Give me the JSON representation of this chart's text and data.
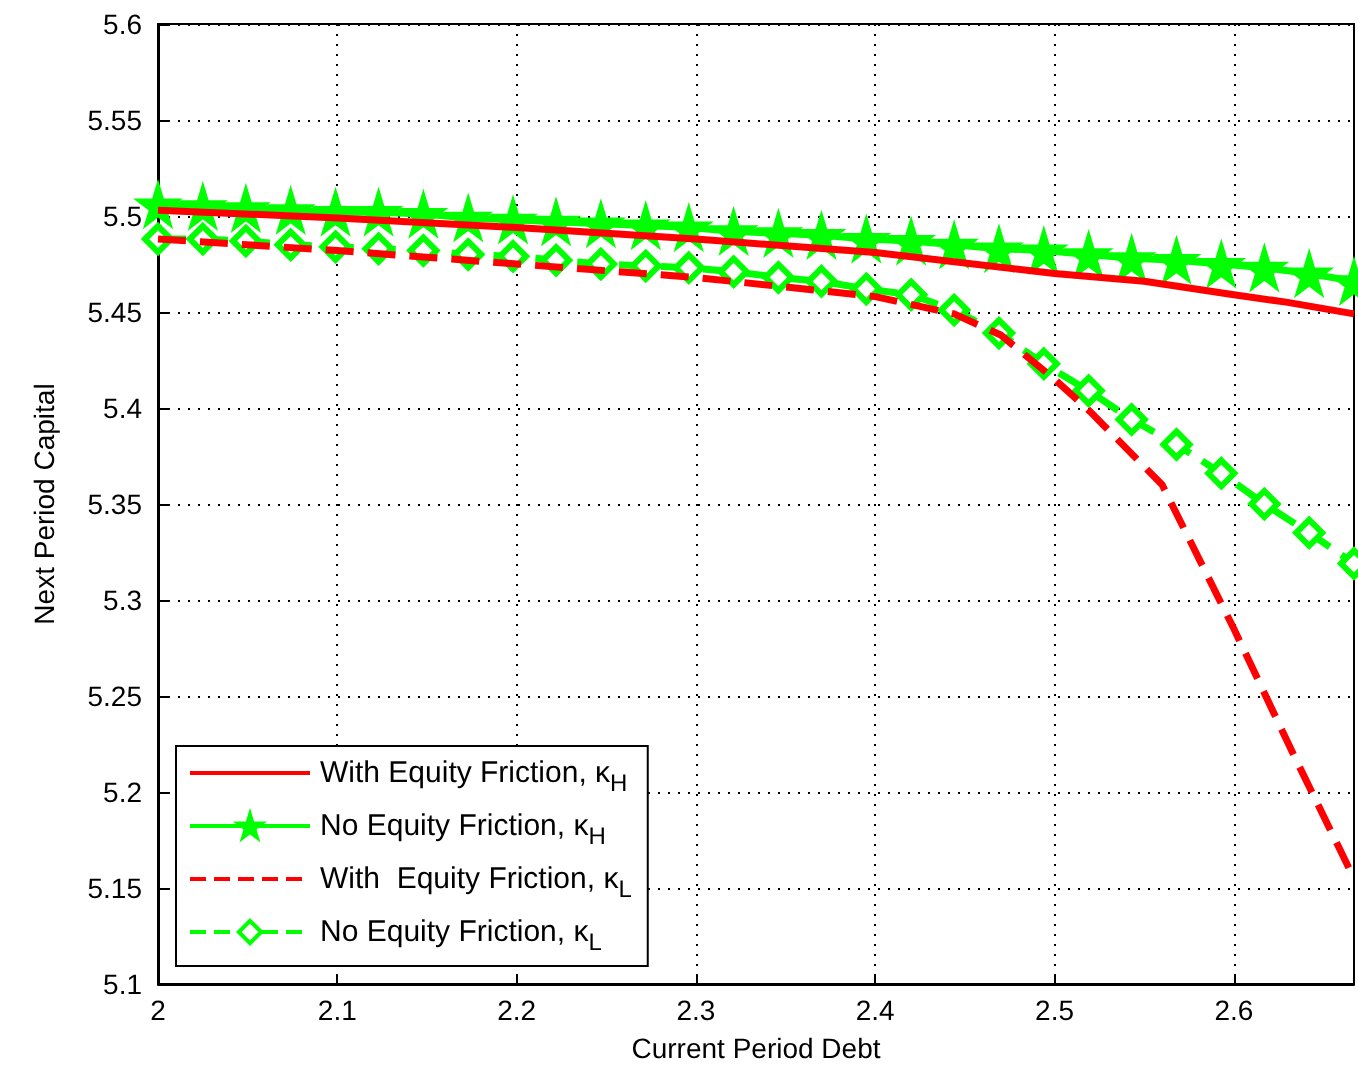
{
  "chart_data": {
    "type": "line",
    "xlabel": "Current Period Debt",
    "ylabel": "Next Period Capital",
    "xlim": [
      2,
      2.667
    ],
    "xticks": [
      2,
      2.1,
      2.2,
      2.3,
      2.4,
      2.5,
      2.6
    ],
    "ylim": [
      5.1,
      5.6
    ],
    "yticks": [
      5.1,
      5.15,
      5.2,
      5.25,
      5.3,
      5.35,
      5.4,
      5.45,
      5.5,
      5.55,
      5.6
    ],
    "grid": true,
    "legend": "bottom left",
    "series": [
      {
        "name": "With Equity Friction, κ$_{H}$",
        "color": "#ff0000",
        "marker": "none",
        "line_style": "solid",
        "x": [
          2,
          2.1,
          2.2,
          2.3,
          2.4,
          2.5,
          2.55,
          2.6,
          2.63,
          2.667
        ],
        "values": [
          5.503,
          5.499,
          5.494,
          5.488,
          5.481,
          5.47,
          5.466,
          5.459,
          5.455,
          5.449
        ]
      },
      {
        "name": "No Equity Friction, κ$_{H}$",
        "color": "#00ff00",
        "marker": "star",
        "line_style": "solid",
        "x": [
          2,
          2.025,
          2.049,
          2.074,
          2.099,
          2.123,
          2.148,
          2.173,
          2.198,
          2.222,
          2.247,
          2.272,
          2.296,
          2.321,
          2.346,
          2.37,
          2.395,
          2.42,
          2.444,
          2.469,
          2.494,
          2.519,
          2.543,
          2.568,
          2.593,
          2.617,
          2.642,
          2.667
        ],
        "values": [
          5.506,
          5.505,
          5.504,
          5.503,
          5.502,
          5.502,
          5.501,
          5.499,
          5.498,
          5.497,
          5.496,
          5.495,
          5.494,
          5.492,
          5.491,
          5.49,
          5.488,
          5.487,
          5.485,
          5.483,
          5.482,
          5.48,
          5.478,
          5.477,
          5.475,
          5.473,
          5.47,
          5.466
        ]
      },
      {
        "name": "With  Equity Friction, κ$_{L}$",
        "color": "#ff0000",
        "marker": "none",
        "line_style": "dashed",
        "x": [
          2,
          2.1,
          2.2,
          2.3,
          2.4,
          2.444,
          2.47,
          2.5,
          2.52,
          2.56,
          2.6,
          2.633,
          2.667
        ],
        "values": [
          5.488,
          5.482,
          5.475,
          5.468,
          5.458,
          5.449,
          5.438,
          5.415,
          5.398,
          5.36,
          5.285,
          5.22,
          5.155
        ]
      },
      {
        "name": "No Equity Friction, κ$_{L}$",
        "color": "#00ff00",
        "marker": "diamond",
        "line_style": "dashed",
        "x": [
          2,
          2.025,
          2.049,
          2.074,
          2.099,
          2.123,
          2.148,
          2.173,
          2.198,
          2.222,
          2.247,
          2.272,
          2.296,
          2.321,
          2.346,
          2.37,
          2.395,
          2.42,
          2.444,
          2.469,
          2.494,
          2.519,
          2.543,
          2.568,
          2.593,
          2.617,
          2.642,
          2.667
        ],
        "values": [
          5.488,
          5.488,
          5.487,
          5.485,
          5.484,
          5.483,
          5.482,
          5.48,
          5.479,
          5.477,
          5.475,
          5.474,
          5.473,
          5.471,
          5.468,
          5.466,
          5.462,
          5.459,
          5.451,
          5.439,
          5.423,
          5.409,
          5.394,
          5.381,
          5.366,
          5.35,
          5.335,
          5.319
        ]
      }
    ]
  }
}
